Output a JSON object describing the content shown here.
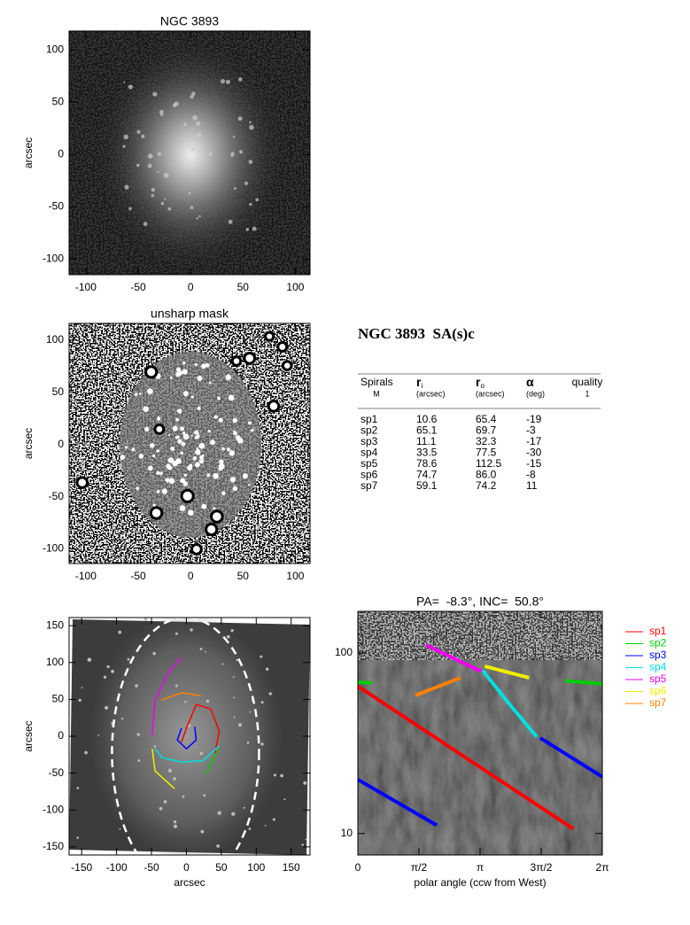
{
  "chart_data": [
    {
      "type": "image",
      "title": "NGC 3893",
      "y_label": "arcsec",
      "xlim": [
        -116,
        114
      ],
      "ylim": [
        -115,
        118
      ],
      "xticks": [
        -100,
        -50,
        0,
        50,
        100
      ],
      "yticks": [
        -100,
        -50,
        0,
        50,
        100
      ]
    },
    {
      "type": "image",
      "title": "unsharp mask",
      "y_label": "arcsec",
      "filter": "unsharp",
      "xlim": [
        -116,
        114
      ],
      "ylim": [
        -114,
        116
      ],
      "xticks": [
        -100,
        -50,
        0,
        50,
        100
      ],
      "yticks": [
        -100,
        -50,
        0,
        50,
        100
      ]
    },
    {
      "type": "overlay",
      "x_label": "arcsec",
      "y_label": "arcsec",
      "xlim": [
        -168,
        177
      ],
      "ylim": [
        -161,
        161
      ],
      "xticks": [
        -150,
        -100,
        -50,
        0,
        50,
        100,
        150
      ],
      "yticks": [
        -150,
        -100,
        -50,
        0,
        50,
        100,
        150
      ],
      "series": [
        {
          "color": "#ff0000",
          "x": [
            -7,
            0,
            14,
            35,
            47,
            41
          ],
          "values": [
            -8,
            11,
            43,
            37,
            7,
            -23
          ]
        },
        {
          "color": "#00cc00",
          "x": [
            46,
            28
          ],
          "values": [
            -17,
            -51
          ]
        },
        {
          "color": "#0000ff",
          "x": [
            -7,
            -13,
            0,
            14,
            12
          ],
          "values": [
            11,
            -5,
            -17,
            -5,
            13
          ]
        },
        {
          "color": "#00e0e0",
          "x": [
            47,
            24,
            -7,
            -35,
            -45
          ],
          "values": [
            -13,
            -33,
            -35,
            -29,
            -17
          ]
        },
        {
          "color": "#ee00ee",
          "x": [
            -49,
            -45,
            -26,
            -7
          ],
          "values": [
            1,
            49,
            86,
            107
          ]
        },
        {
          "color": "#eeee00",
          "x": [
            -49,
            -45,
            -17
          ],
          "values": [
            -17,
            -47,
            -71
          ]
        },
        {
          "color": "#ff8000",
          "x": [
            -36,
            -7,
            21
          ],
          "values": [
            49,
            59,
            55
          ]
        }
      ]
    },
    {
      "type": "line",
      "title": "PA=  -8.3°, INC=  50.8°",
      "x_label": "polar angle (ccw from West)",
      "log_y": true,
      "xlim": [
        0,
        6.2832
      ],
      "ylim": [
        7.6,
        170
      ],
      "xticks": [
        0,
        {
          "value": 1.5708,
          "label": "π/2"
        },
        {
          "value": 3.1416,
          "label": "π"
        },
        {
          "value": 4.7124,
          "label": "3π/2"
        },
        {
          "value": 6.2832,
          "label": "2π"
        }
      ],
      "yticks": [
        10,
        100
      ],
      "legend": "outside-right",
      "series": [
        {
          "name": "sp1",
          "color": "#ff0000",
          "x": [
            0,
            5.54
          ],
          "values": [
            65.4,
            10.6
          ]
        },
        {
          "name": "sp2",
          "color": "#00cc00",
          "x": [
            0,
            0.36,
            3,
            5.33,
            6.2832
          ],
          "values": [
            68.8,
            68.2,
            null,
            70.0,
            67.5
          ]
        },
        {
          "name": "sp3",
          "color": "#0000ff",
          "x": [
            0,
            2.03,
            3,
            4.69,
            6.2832
          ],
          "values": [
            19.9,
            11.1,
            null,
            33.8,
            20.6
          ]
        },
        {
          "name": "sp4",
          "color": "#00e0e0",
          "x": [
            3.21,
            3.9,
            4.6
          ],
          "values": [
            79.8,
            52,
            34.2
          ]
        },
        {
          "name": "sp5",
          "color": "#ee00ee",
          "x": [
            1.75,
            3.17
          ],
          "values": [
            110.7,
            78.9
          ]
        },
        {
          "name": "sp6",
          "color": "#eeee00",
          "x": [
            3.26,
            4.4
          ],
          "values": [
            84.4,
            72.9
          ]
        },
        {
          "name": "sp7",
          "color": "#ff8000",
          "x": [
            1.48,
            2.64
          ],
          "values": [
            58.2,
            72.9
          ]
        }
      ]
    }
  ],
  "table": {
    "title": "NGC 3893  SA(s)c",
    "header": [
      {
        "top": "Spirals",
        "unit": "M"
      },
      {
        "top": "r",
        "sub": "i",
        "unit": "(arcsec)"
      },
      {
        "top": "r",
        "sub": "o",
        "unit": "(arcsec)"
      },
      {
        "top": "α",
        "unit": "(deg)"
      },
      {
        "top": "quality",
        "unit": "1"
      }
    ],
    "rows": [
      [
        "sp1",
        "10.6",
        "65.4",
        "-19"
      ],
      [
        "sp2",
        "65.1",
        "69.7",
        "-3"
      ],
      [
        "sp3",
        "11.1",
        "32.3",
        "-17"
      ],
      [
        "sp4",
        "33.5",
        "77.5",
        "-30"
      ],
      [
        "sp5",
        "78.6",
        "112.5",
        "-15"
      ],
      [
        "sp6",
        "74.7",
        "86.0",
        "-8"
      ],
      [
        "sp7",
        "59.1",
        "74.2",
        "11"
      ]
    ]
  }
}
